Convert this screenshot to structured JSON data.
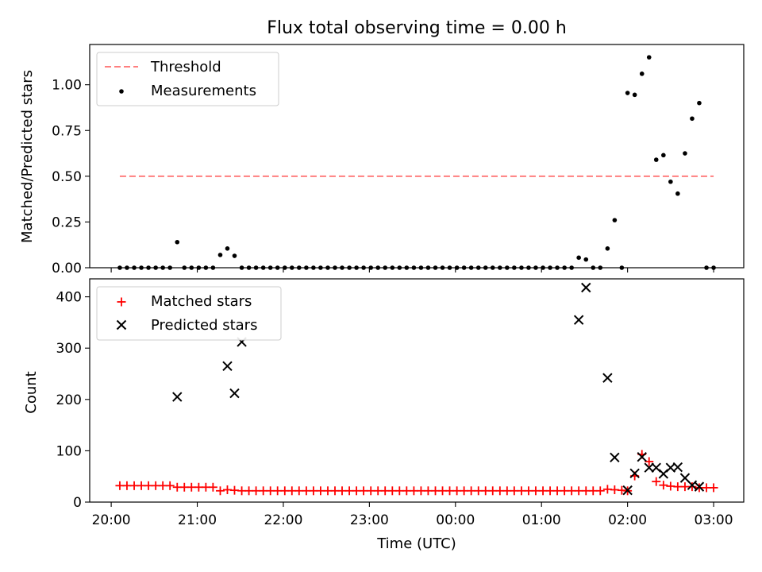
{
  "figure_title": "Flux total observing time = 0.00 h",
  "colors": {
    "threshold": "#ff7f7f",
    "measurement": "#000000",
    "matched": "#ff0000",
    "predicted": "#000000"
  },
  "chart_data": [
    {
      "type": "scatter",
      "title": "Flux total observing time = 0.00 h",
      "xlabel": "",
      "ylabel": "Matched/Predicted stars",
      "x_unit": "hours since 20:00 UTC",
      "xlim": [
        -0.25,
        7.35
      ],
      "ylim": [
        0,
        1.22
      ],
      "yticks": [
        0.0,
        0.25,
        0.5,
        0.75,
        1.0
      ],
      "ytick_labels": [
        "0.00",
        "0.25",
        "0.50",
        "0.75",
        "1.00"
      ],
      "xticks": [
        0,
        1,
        2,
        3,
        4,
        5,
        6,
        7
      ],
      "grid": false,
      "legend_position": "top-left",
      "legend": [
        "Threshold",
        "Measurements"
      ],
      "threshold": {
        "name": "Threshold",
        "y": 0.5,
        "x": [
          0.1,
          7.0
        ],
        "style": "dashed"
      },
      "series": [
        {
          "name": "Measurements",
          "marker": "dot",
          "x": [
            0.1,
            0.183,
            0.267,
            0.35,
            0.433,
            0.517,
            0.6,
            0.683,
            0.767,
            0.85,
            0.933,
            1.017,
            1.1,
            1.183,
            1.267,
            1.35,
            1.433,
            1.517,
            1.6,
            1.683,
            1.767,
            1.85,
            1.933,
            2.017,
            2.1,
            2.183,
            2.267,
            2.35,
            2.433,
            2.517,
            2.6,
            2.683,
            2.767,
            2.85,
            2.933,
            3.017,
            3.1,
            3.183,
            3.267,
            3.35,
            3.433,
            3.517,
            3.6,
            3.683,
            3.767,
            3.85,
            3.933,
            4.017,
            4.1,
            4.183,
            4.267,
            4.35,
            4.433,
            4.517,
            4.6,
            4.683,
            4.767,
            4.85,
            4.933,
            5.017,
            5.1,
            5.183,
            5.267,
            5.35,
            5.433,
            5.517,
            5.6,
            5.683,
            5.767,
            5.85,
            5.933,
            6.0,
            6.083,
            6.167,
            6.25,
            6.333,
            6.417,
            6.5,
            6.583,
            6.667,
            6.75,
            6.833,
            6.917,
            7.0
          ],
          "y": [
            0,
            0,
            0,
            0,
            0,
            0,
            0,
            0,
            0.14,
            0,
            0,
            0,
            0,
            0,
            0.07,
            0.105,
            0.065,
            0,
            0,
            0,
            0,
            0,
            0,
            0,
            0,
            0,
            0,
            0,
            0,
            0,
            0,
            0,
            0,
            0,
            0,
            0,
            0,
            0,
            0,
            0,
            0,
            0,
            0,
            0,
            0,
            0,
            0,
            0,
            0,
            0,
            0,
            0,
            0,
            0,
            0,
            0,
            0,
            0,
            0,
            0,
            0,
            0,
            0,
            0,
            0.055,
            0.045,
            0,
            0,
            0.105,
            0.26,
            0,
            0.955,
            0.945,
            1.06,
            1.15,
            0.59,
            0.615,
            0.47,
            0.405,
            0.625,
            0.815,
            0.9,
            0,
            0
          ]
        }
      ]
    },
    {
      "type": "scatter",
      "title": "",
      "xlabel": "Time (UTC)",
      "ylabel": "Count",
      "x_unit": "hours since 20:00 UTC",
      "xlim": [
        -0.25,
        7.35
      ],
      "ylim": [
        0,
        435
      ],
      "yticks": [
        0,
        100,
        200,
        300,
        400
      ],
      "ytick_labels": [
        "0",
        "100",
        "200",
        "300",
        "400"
      ],
      "xticks": [
        0,
        1,
        2,
        3,
        4,
        5,
        6,
        7
      ],
      "xtick_labels": [
        "20:00",
        "21:00",
        "22:00",
        "23:00",
        "00:00",
        "01:00",
        "02:00",
        "03:00"
      ],
      "grid": false,
      "legend_position": "top-left",
      "legend": [
        "Matched stars",
        "Predicted stars"
      ],
      "series": [
        {
          "name": "Matched stars",
          "marker": "plus",
          "x": [
            0.1,
            0.183,
            0.267,
            0.35,
            0.433,
            0.517,
            0.6,
            0.683,
            0.767,
            0.85,
            0.933,
            1.017,
            1.1,
            1.183,
            1.267,
            1.35,
            1.433,
            1.517,
            1.6,
            1.683,
            1.767,
            1.85,
            1.933,
            2.017,
            2.1,
            2.183,
            2.267,
            2.35,
            2.433,
            2.517,
            2.6,
            2.683,
            2.767,
            2.85,
            2.933,
            3.017,
            3.1,
            3.183,
            3.267,
            3.35,
            3.433,
            3.517,
            3.6,
            3.683,
            3.767,
            3.85,
            3.933,
            4.017,
            4.1,
            4.183,
            4.267,
            4.35,
            4.433,
            4.517,
            4.6,
            4.683,
            4.767,
            4.85,
            4.933,
            5.017,
            5.1,
            5.183,
            5.267,
            5.35,
            5.433,
            5.517,
            5.6,
            5.683,
            5.767,
            5.85,
            5.933,
            6.0,
            6.083,
            6.167,
            6.25,
            6.333,
            6.417,
            6.5,
            6.583,
            6.667,
            6.75,
            6.833,
            6.917,
            7.0
          ],
          "y": [
            32,
            32,
            32,
            32,
            32,
            32,
            32,
            32,
            29,
            29,
            29,
            29,
            29,
            29,
            22,
            24,
            23,
            22,
            22,
            22,
            22,
            22,
            22,
            22,
            22,
            22,
            22,
            22,
            22,
            22,
            22,
            22,
            22,
            22,
            22,
            22,
            22,
            22,
            22,
            22,
            22,
            22,
            22,
            22,
            22,
            22,
            22,
            22,
            22,
            22,
            22,
            22,
            22,
            22,
            22,
            22,
            22,
            22,
            22,
            22,
            22,
            22,
            22,
            22,
            22,
            22,
            22,
            22,
            25,
            24,
            23,
            22,
            51,
            93,
            79,
            40,
            33,
            31,
            30,
            30,
            30,
            28,
            28,
            28
          ]
        },
        {
          "name": "Predicted stars",
          "marker": "x",
          "x": [
            0.767,
            1.35,
            1.433,
            1.517,
            5.433,
            5.517,
            5.767,
            5.85,
            6.0,
            6.083,
            6.167,
            6.25,
            6.333,
            6.417,
            6.5,
            6.583,
            6.667,
            6.75,
            6.833
          ],
          "y": [
            205,
            265,
            212,
            312,
            355,
            418,
            242,
            87,
            23,
            56,
            88,
            67,
            67,
            55,
            67,
            68,
            47,
            33,
            30
          ]
        }
      ]
    }
  ]
}
